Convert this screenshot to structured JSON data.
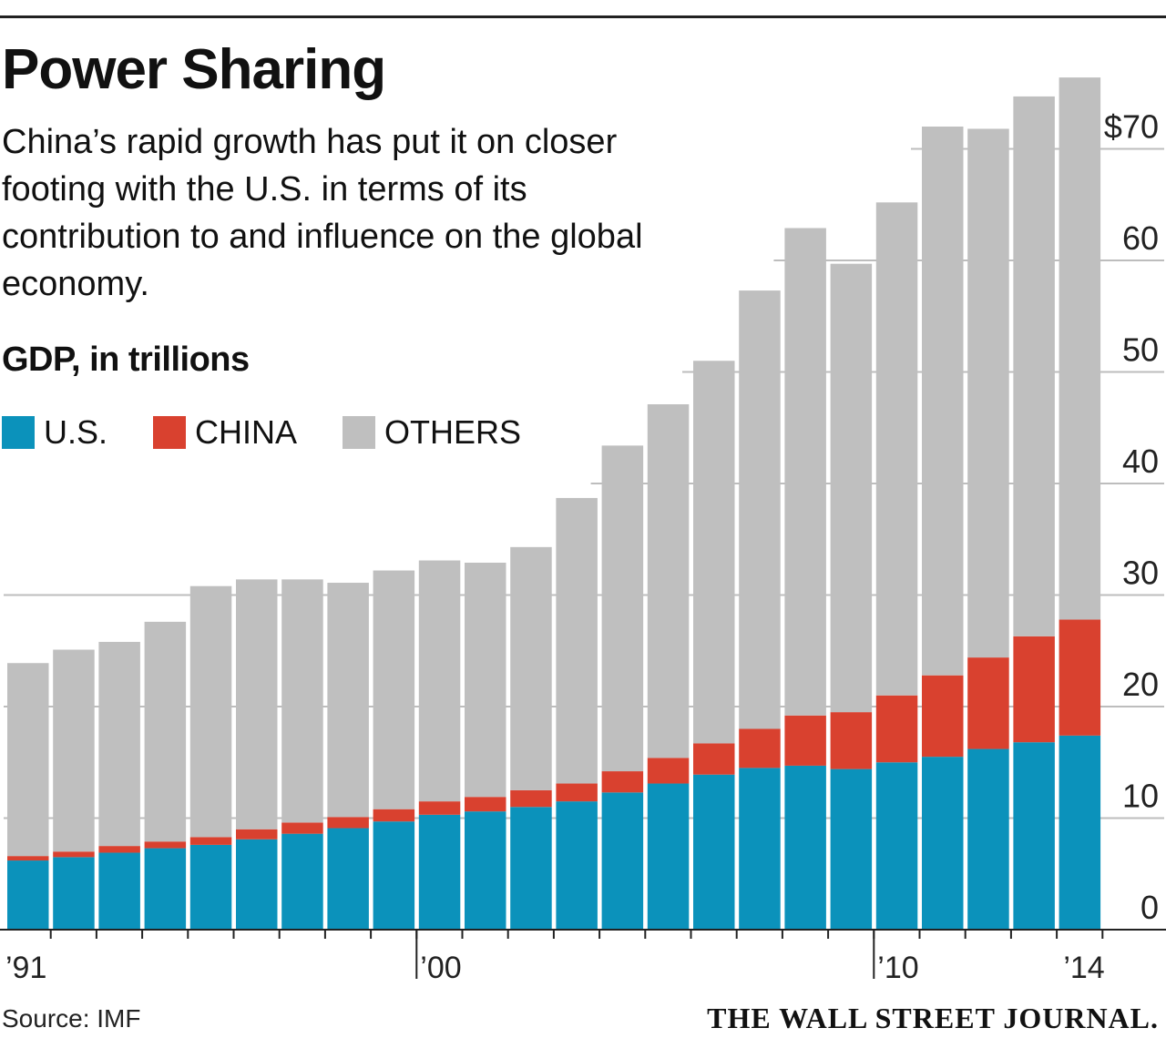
{
  "header": {
    "title": "Power Sharing",
    "subtitle": "China’s rapid growth has put it on closer footing with the U.S. in terms of its contribution to and influence on the global economy.",
    "unit_label": "GDP, in trillions"
  },
  "legend": [
    {
      "label": "U.S.",
      "color": "#0b92bb"
    },
    {
      "label": "CHINA",
      "color": "#d9412f"
    },
    {
      "label": "OTHERS",
      "color": "#bfbfbf"
    }
  ],
  "footer": {
    "source": "Source: IMF",
    "publisher": "THE WALL STREET JOURNAL."
  },
  "chart_data": {
    "type": "bar",
    "stacked": true,
    "title": "Power Sharing",
    "ylabel": "GDP, in trillions",
    "ylim": [
      0,
      75
    ],
    "y_ticks": [
      0,
      10,
      20,
      30,
      40,
      50,
      60,
      70
    ],
    "y_tick_labels": [
      "0",
      "10",
      "20",
      "30",
      "40",
      "50",
      "60",
      "$70"
    ],
    "x_tick_labels": [
      {
        "label": "’91",
        "year": 1991
      },
      {
        "label": "’00",
        "year": 2000
      },
      {
        "label": "’10",
        "year": 2010
      },
      {
        "label": "’14",
        "year": 2014
      }
    ],
    "categories": [
      "1991",
      "1992",
      "1993",
      "1994",
      "1995",
      "1996",
      "1997",
      "1998",
      "1999",
      "2000",
      "2001",
      "2002",
      "2003",
      "2004",
      "2005",
      "2006",
      "2007",
      "2008",
      "2009",
      "2010",
      "2011",
      "2012",
      "2013",
      "2014"
    ],
    "series": [
      {
        "name": "U.S.",
        "color": "#0b92bb",
        "values": [
          6.2,
          6.5,
          6.9,
          7.3,
          7.6,
          8.1,
          8.6,
          9.1,
          9.7,
          10.3,
          10.6,
          11.0,
          11.5,
          12.3,
          13.1,
          13.9,
          14.5,
          14.7,
          14.4,
          15.0,
          15.5,
          16.2,
          16.8,
          17.4
        ]
      },
      {
        "name": "CHINA",
        "color": "#d9412f",
        "values": [
          0.4,
          0.5,
          0.6,
          0.6,
          0.7,
          0.9,
          1.0,
          1.0,
          1.1,
          1.2,
          1.3,
          1.5,
          1.6,
          1.9,
          2.3,
          2.8,
          3.5,
          4.5,
          5.1,
          6.0,
          7.3,
          8.2,
          9.5,
          10.4
        ]
      },
      {
        "name": "OTHERS",
        "color": "#bfbfbf",
        "values": [
          17.3,
          18.1,
          18.3,
          19.7,
          22.5,
          22.4,
          21.8,
          21.0,
          21.4,
          21.6,
          21.0,
          21.8,
          25.6,
          29.2,
          31.7,
          34.3,
          39.3,
          43.7,
          40.2,
          44.2,
          49.2,
          47.4,
          48.4,
          48.6
        ]
      }
    ]
  }
}
